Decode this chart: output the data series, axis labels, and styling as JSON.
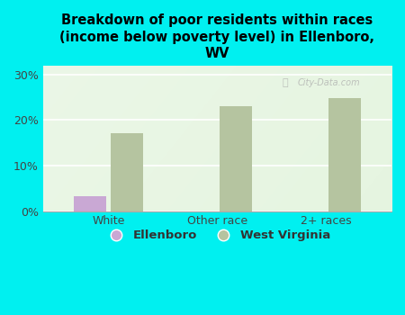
{
  "title": "Breakdown of poor residents within races\n(income below poverty level) in Ellenboro,\nWV",
  "categories": [
    "White",
    "Other race",
    "2+ races"
  ],
  "ellenboro_values": [
    3.2,
    0,
    0
  ],
  "wv_values": [
    17.2,
    23.0,
    24.8
  ],
  "ellenboro_color": "#c9a8d4",
  "wv_color": "#b5c4a0",
  "background_color": "#00f0f0",
  "plot_bg_top": "#e8f5e0",
  "plot_bg_bottom": "#f8fff8",
  "ylim": [
    0,
    32
  ],
  "yticks": [
    0,
    10,
    20,
    30
  ],
  "bar_width": 0.3,
  "bar_gap": 0.04,
  "legend_labels": [
    "Ellenboro",
    "West Virginia"
  ],
  "watermark": "City-Data.com",
  "xlabel_fontsize": 9,
  "ylabel_fontsize": 9,
  "title_fontsize": 10.5
}
